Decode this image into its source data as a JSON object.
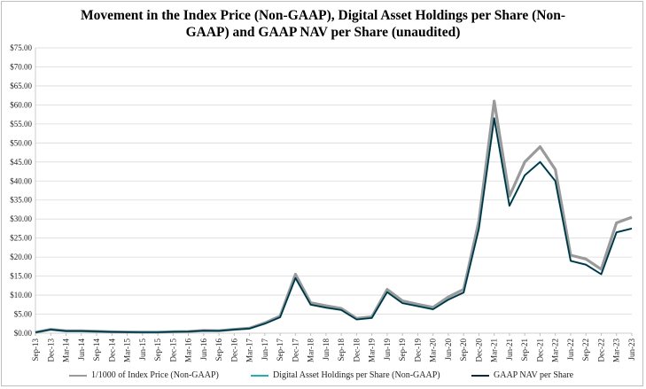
{
  "chart_data": {
    "type": "line",
    "title_line1": "Movement in the Index Price (Non-GAAP), Digital Asset Holdings per Share (Non-",
    "title_line2": "GAAP) and GAAP NAV per Share (unaudited)",
    "xlabel": "",
    "ylabel": "",
    "ylim": [
      0,
      75
    ],
    "yticks": [
      "$0.00",
      "$5.00",
      "$10.00",
      "$15.00",
      "$20.00",
      "$25.00",
      "$30.00",
      "$35.00",
      "$40.00",
      "$45.00",
      "$50.00",
      "$55.00",
      "$60.00",
      "$65.00",
      "$70.00",
      "$75.00"
    ],
    "ytick_values": [
      0,
      5,
      10,
      15,
      20,
      25,
      30,
      35,
      40,
      45,
      50,
      55,
      60,
      65,
      70,
      75
    ],
    "xticks": [
      "Sep-13",
      "Dec-13",
      "Mar-14",
      "Jun-14",
      "Sep-14",
      "Dec-14",
      "Mar-15",
      "Jun-15",
      "Sep-15",
      "Dec-15",
      "Mar-16",
      "Jun-16",
      "Sep-16",
      "Dec-16",
      "Mar-17",
      "Jun-17",
      "Sep-17",
      "Dec-17",
      "Mar-18",
      "Jun-18",
      "Sep-18",
      "Dec-18",
      "Mar-19",
      "Jun-19",
      "Sep-19",
      "Dec-19",
      "Mar-20",
      "Jun-20",
      "Sep-20",
      "Dec-20",
      "Mar-21",
      "Jun-21",
      "Sep-21",
      "Dec-21",
      "Mar-22",
      "Jun-22",
      "Sep-22",
      "Dec-22",
      "Mar-23",
      "Jun-23"
    ],
    "grid": true,
    "legend_position": "bottom",
    "series": [
      {
        "name": "1/1000 of Index Price (Non-GAAP)",
        "color": "#9a9a9a",
        "values": [
          0.2,
          1.0,
          0.6,
          0.6,
          0.5,
          0.35,
          0.3,
          0.25,
          0.25,
          0.4,
          0.45,
          0.7,
          0.65,
          1.0,
          1.3,
          2.7,
          4.5,
          15.5,
          8.0,
          7.2,
          6.5,
          3.9,
          4.3,
          11.5,
          8.5,
          7.6,
          6.8,
          9.5,
          11.5,
          29.5,
          61.0,
          36.0,
          45.0,
          49.0,
          43.0,
          20.5,
          19.5,
          16.8,
          29.0,
          30.5
        ]
      },
      {
        "name": "Digital Asset Holdings per Share (Non-GAAP)",
        "color": "#1fb0b0",
        "values": [
          0.2,
          0.95,
          0.55,
          0.55,
          0.45,
          0.33,
          0.28,
          0.23,
          0.23,
          0.37,
          0.42,
          0.66,
          0.6,
          0.95,
          1.2,
          2.5,
          4.2,
          14.5,
          7.5,
          6.7,
          6.1,
          3.6,
          4.0,
          10.8,
          7.9,
          7.1,
          6.3,
          8.8,
          10.7,
          27.5,
          56.5,
          33.5,
          41.5,
          45.0,
          40.0,
          19.0,
          18.0,
          15.5,
          26.5,
          27.5
        ]
      },
      {
        "name": "GAAP NAV per Share",
        "color": "#10293c",
        "values": [
          0.2,
          0.95,
          0.55,
          0.55,
          0.45,
          0.33,
          0.28,
          0.23,
          0.23,
          0.37,
          0.42,
          0.66,
          0.6,
          0.95,
          1.2,
          2.5,
          4.2,
          14.5,
          7.5,
          6.7,
          6.1,
          3.6,
          4.0,
          10.8,
          7.9,
          7.1,
          6.3,
          8.8,
          10.7,
          27.5,
          56.5,
          33.5,
          41.5,
          45.0,
          40.0,
          19.0,
          18.0,
          15.5,
          26.5,
          27.5
        ]
      }
    ]
  },
  "style": {
    "grid_color": "#d9d9d9",
    "axis_color": "#bfbfbf"
  }
}
